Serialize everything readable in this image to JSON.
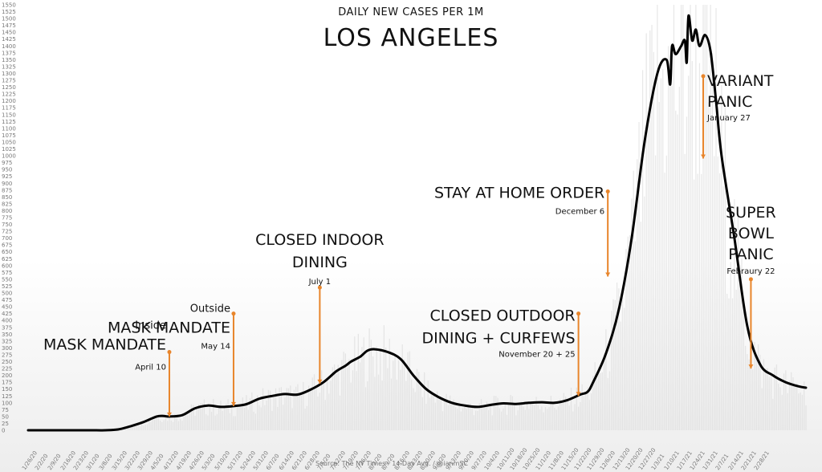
{
  "header": {
    "subtitle": "DAILY NEW CASES PER 1M",
    "title": "LOS ANGELES"
  },
  "source": "Source: The NY Times - 14 Day Avg. / @ianmSC",
  "colors": {
    "line": "#000000",
    "annotation": "#e8852b",
    "bars": "#d6d6d6"
  },
  "chart_data": {
    "type": "line",
    "ylim": [
      0,
      1550
    ],
    "yticks": [
      0,
      25,
      50,
      75,
      100,
      125,
      150,
      175,
      200,
      225,
      250,
      275,
      300,
      325,
      350,
      375,
      400,
      425,
      450,
      475,
      500,
      525,
      550,
      575,
      600,
      625,
      650,
      675,
      700,
      725,
      750,
      775,
      800,
      825,
      850,
      875,
      900,
      925,
      950,
      975,
      1000,
      1025,
      1050,
      1075,
      1100,
      1125,
      1150,
      1175,
      1200,
      1225,
      1250,
      1275,
      1300,
      1325,
      1350,
      1375,
      1400,
      1425,
      1450,
      1475,
      1500,
      1525,
      1550
    ],
    "xticks": [
      "1/26/20",
      "2/2/20",
      "2/9/20",
      "2/16/20",
      "2/23/20",
      "3/1/20",
      "3/8/20",
      "3/15/20",
      "3/22/20",
      "3/29/20",
      "4/5/20",
      "4/12/20",
      "4/19/20",
      "4/26/20",
      "5/3/20",
      "5/10/20",
      "5/17/20",
      "5/24/20",
      "5/31/20",
      "6/7/20",
      "6/14/20",
      "6/21/20",
      "6/28/20",
      "7/5/20",
      "7/12/20",
      "7/19/20",
      "7/26/20",
      "8/2/20",
      "8/9/20",
      "8/16/20",
      "8/23/20",
      "8/30/20",
      "9/6/20",
      "9/13/20",
      "9/20/20",
      "9/27/20",
      "10/4/20",
      "10/11/20",
      "10/18/20",
      "10/25/20",
      "11/1/20",
      "11/8/20",
      "11/15/20",
      "11/22/20",
      "11/29/20",
      "12/6/20",
      "12/13/20",
      "12/20/20",
      "12/27/20",
      "1/3/21",
      "1/10/21",
      "1/17/21",
      "1/24/21",
      "1/31/21",
      "2/7/21",
      "2/14/21",
      "2/21/21",
      "2/28/21"
    ],
    "series": [
      {
        "x": [
          0,
          7,
          14,
          21,
          28,
          35,
          42,
          49,
          56,
          63,
          70,
          74,
          77,
          84,
          91,
          98,
          105,
          112,
          119,
          126,
          133,
          140,
          147,
          154,
          161,
          168,
          173,
          176,
          181,
          185,
          189,
          196,
          203,
          210,
          217,
          224,
          231,
          238,
          245,
          252,
          259,
          266,
          273,
          280,
          287,
          294,
          301,
          305,
          308,
          315,
          322,
          329,
          336,
          343,
          348,
          350,
          351,
          353,
          356,
          358,
          359,
          360,
          362,
          364,
          366,
          369,
          372,
          375,
          378,
          385,
          392,
          399,
          406,
          413,
          420,
          424
        ],
        "y": [
          0,
          0,
          0,
          0,
          0,
          0,
          0,
          3,
          15,
          30,
          50,
          52,
          50,
          55,
          80,
          90,
          85,
          88,
          95,
          115,
          125,
          132,
          130,
          148,
          175,
          215,
          235,
          250,
          268,
          290,
          295,
          285,
          260,
          200,
          150,
          120,
          100,
          90,
          85,
          92,
          98,
          96,
          100,
          102,
          100,
          110,
          130,
          140,
          175,
          280,
          440,
          700,
          1050,
          1300,
          1350,
          1260,
          1400,
          1370,
          1400,
          1420,
          1340,
          1510,
          1420,
          1460,
          1400,
          1440,
          1380,
          1200,
          1000,
          700,
          380,
          240,
          200,
          175,
          160,
          155
        ]
      }
    ],
    "annotations": [
      {
        "x": 77,
        "y": 50,
        "top": 285,
        "line1": "Inside",
        "line2": "MASK MANDATE",
        "date": "April 10"
      },
      {
        "x": 112,
        "y": 88,
        "top": 425,
        "line1": "Outside",
        "line2": "MASK MANDATE",
        "date": "May 14"
      },
      {
        "x": 159,
        "y": 170,
        "top": 520,
        "line1": "CLOSED INDOOR",
        "line2": "DINING",
        "date": "July 1"
      },
      {
        "x": 300,
        "y": 125,
        "top": 425,
        "line1": "CLOSED OUTDOOR",
        "line2": "DINING + CURFEWS",
        "date": "November 20 + 25"
      },
      {
        "x": 316,
        "y": 560,
        "top": 870,
        "line1": "STAY AT HOME ORDER",
        "line2": "",
        "date": "December 6"
      },
      {
        "x": 368,
        "y": 990,
        "top": 1290,
        "line1": "VARIANT",
        "line2": "PANIC",
        "date": "January 27"
      },
      {
        "x": 394,
        "y": 225,
        "top": 550,
        "line1": "SUPER",
        "line2": "BOWL",
        "line3": "PANIC",
        "date": "Febraury 22"
      }
    ]
  }
}
